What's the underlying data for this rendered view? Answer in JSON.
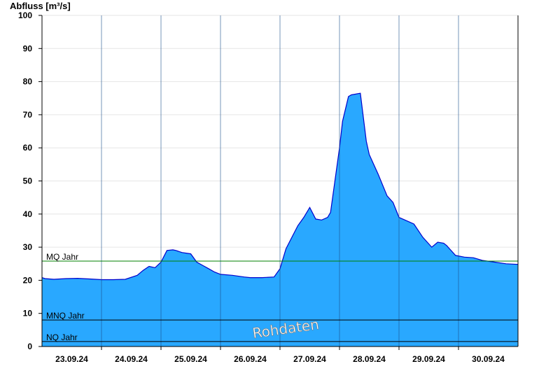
{
  "chart_data": {
    "type": "area",
    "ylabel": "Abfluss [m³/s]",
    "ylim": [
      0,
      100
    ],
    "yticks": [
      0,
      10,
      20,
      30,
      40,
      50,
      60,
      70,
      80,
      90,
      100
    ],
    "xlim": [
      0,
      8
    ],
    "date_labels": [
      "23.09.24",
      "24.09.24",
      "25.09.24",
      "26.09.24",
      "27.09.24",
      "28.09.24",
      "29.09.24",
      "30.09.24"
    ],
    "series": [
      {
        "color": "#29a8ff",
        "line_color": "#0000cc",
        "x": [
          0,
          0.05,
          0.2,
          0.4,
          0.6,
          0.8,
          1.0,
          1.2,
          1.4,
          1.6,
          1.7,
          1.8,
          1.9,
          2.0,
          2.1,
          2.2,
          2.25,
          2.35,
          2.5,
          2.6,
          2.7,
          2.8,
          2.9,
          3.0,
          3.2,
          3.4,
          3.5,
          3.7,
          3.9,
          4.0,
          4.1,
          4.2,
          4.3,
          4.4,
          4.5,
          4.6,
          4.7,
          4.8,
          4.85,
          5.0,
          5.05,
          5.15,
          5.2,
          5.35,
          5.45,
          5.5,
          5.65,
          5.8,
          5.9,
          6.0,
          6.1,
          6.25,
          6.4,
          6.55,
          6.65,
          6.75,
          6.8,
          6.85,
          6.95,
          7.1,
          7.25,
          7.4,
          7.6,
          7.8,
          8.0
        ],
        "y": [
          20.8,
          20.5,
          20.3,
          20.5,
          20.6,
          20.4,
          20.2,
          20.2,
          20.3,
          21.5,
          23.0,
          24.2,
          23.8,
          25.5,
          29.0,
          29.2,
          29.0,
          28.4,
          28.0,
          25.5,
          24.5,
          23.5,
          22.5,
          21.8,
          21.5,
          21.0,
          20.8,
          20.8,
          21.0,
          23.5,
          29.5,
          33.0,
          36.5,
          39.0,
          42.0,
          38.5,
          38.2,
          39.0,
          40.5,
          60.0,
          68.0,
          75.5,
          76.0,
          76.5,
          62.0,
          58.0,
          52.0,
          45.5,
          43.5,
          39.0,
          38.2,
          37.0,
          33.0,
          30.0,
          31.5,
          31.2,
          30.5,
          29.5,
          27.5,
          27.0,
          26.8,
          26.0,
          25.5,
          25.0,
          24.8
        ]
      }
    ],
    "reference_lines": [
      {
        "label": "MQ Jahr",
        "value": 25.8,
        "color": "#008000"
      },
      {
        "label": "MNQ Jahr",
        "value": 8.0,
        "color": "#000000"
      },
      {
        "label": "NQ Jahr",
        "value": 1.5,
        "color": "#000000"
      }
    ],
    "grid": true,
    "watermark": "Rohdaten"
  }
}
